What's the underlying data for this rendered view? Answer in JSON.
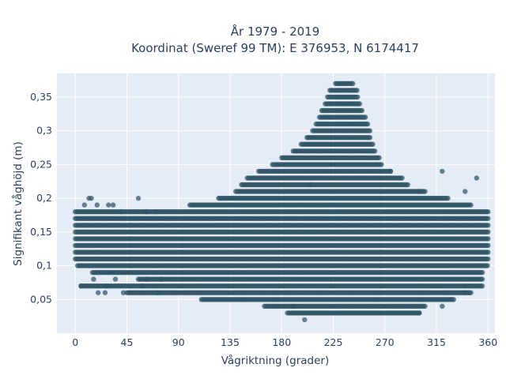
{
  "chart_data": {
    "type": "scatter",
    "title": "År 1979 - 2019",
    "subtitle": "Koordinat (Sweref 99 TM): E 376953, N 6174417",
    "xlabel": "Vågriktning (grader)",
    "ylabel": "Signifikant våghöjd (m)",
    "xlim": [
      -16,
      366
    ],
    "ylim": [
      0,
      0.385
    ],
    "x_ticks": [
      0,
      45,
      90,
      135,
      180,
      225,
      270,
      315,
      360
    ],
    "x_tick_labels": [
      "0",
      "45",
      "90",
      "135",
      "180",
      "225",
      "270",
      "315",
      "360"
    ],
    "y_ticks": [
      0.05,
      0.1,
      0.15,
      0.2,
      0.25,
      0.3,
      0.35
    ],
    "y_tick_labels": [
      "0,05",
      "0,1",
      "0,15",
      "0,2",
      "0,25",
      "0,3",
      "0,35"
    ],
    "grid": true,
    "marker_color": "#2f5466",
    "bands": [
      {
        "y": 0.02,
        "x": [
          [
            200,
            200
          ]
        ]
      },
      {
        "y": 0.03,
        "x": [
          [
            185,
            300
          ]
        ]
      },
      {
        "y": 0.04,
        "x": [
          [
            165,
            305
          ]
        ]
      },
      {
        "y": 0.05,
        "x": [
          [
            110,
            330
          ]
        ]
      },
      {
        "y": 0.06,
        "x": [
          [
            45,
            345
          ]
        ]
      },
      {
        "y": 0.07,
        "x": [
          [
            5,
            355
          ]
        ]
      },
      {
        "y": 0.08,
        "x": [
          [
            55,
            355
          ]
        ]
      },
      {
        "y": 0.09,
        "x": [
          [
            15,
            355
          ]
        ]
      },
      {
        "y": 0.1,
        "x": [
          [
            2,
            360
          ]
        ]
      },
      {
        "y": 0.11,
        "x": [
          [
            0,
            360
          ]
        ]
      },
      {
        "y": 0.12,
        "x": [
          [
            0,
            360
          ]
        ]
      },
      {
        "y": 0.13,
        "x": [
          [
            0,
            360
          ]
        ]
      },
      {
        "y": 0.14,
        "x": [
          [
            0,
            360
          ]
        ]
      },
      {
        "y": 0.15,
        "x": [
          [
            0,
            360
          ]
        ]
      },
      {
        "y": 0.16,
        "x": [
          [
            0,
            360
          ]
        ]
      },
      {
        "y": 0.17,
        "x": [
          [
            0,
            360
          ]
        ]
      },
      {
        "y": 0.18,
        "x": [
          [
            0,
            360
          ]
        ]
      },
      {
        "y": 0.19,
        "x": [
          [
            100,
            345
          ]
        ]
      },
      {
        "y": 0.2,
        "x": [
          [
            125,
            325
          ]
        ]
      },
      {
        "y": 0.21,
        "x": [
          [
            140,
            305
          ]
        ]
      },
      {
        "y": 0.22,
        "x": [
          [
            145,
            290
          ]
        ]
      },
      {
        "y": 0.23,
        "x": [
          [
            150,
            285
          ]
        ]
      },
      {
        "y": 0.24,
        "x": [
          [
            160,
            275
          ]
        ]
      },
      {
        "y": 0.25,
        "x": [
          [
            172,
            268
          ]
        ]
      },
      {
        "y": 0.26,
        "x": [
          [
            180,
            265
          ]
        ]
      },
      {
        "y": 0.27,
        "x": [
          [
            190,
            262
          ]
        ]
      },
      {
        "y": 0.28,
        "x": [
          [
            197,
            260
          ]
        ]
      },
      {
        "y": 0.29,
        "x": [
          [
            202,
            258
          ]
        ]
      },
      {
        "y": 0.3,
        "x": [
          [
            207,
            257
          ]
        ]
      },
      {
        "y": 0.31,
        "x": [
          [
            210,
            255
          ]
        ]
      },
      {
        "y": 0.32,
        "x": [
          [
            213,
            253
          ]
        ]
      },
      {
        "y": 0.33,
        "x": [
          [
            215,
            250
          ]
        ]
      },
      {
        "y": 0.34,
        "x": [
          [
            218,
            248
          ]
        ]
      },
      {
        "y": 0.35,
        "x": [
          [
            220,
            247
          ]
        ]
      },
      {
        "y": 0.36,
        "x": [
          [
            222,
            246
          ]
        ]
      },
      {
        "y": 0.37,
        "x": [
          [
            227,
            242
          ]
        ]
      }
    ],
    "outliers": [
      [
        12,
        0.2
      ],
      [
        14,
        0.2
      ],
      [
        8,
        0.19
      ],
      [
        19,
        0.19
      ],
      [
        29,
        0.19
      ],
      [
        33,
        0.19
      ],
      [
        55,
        0.2
      ],
      [
        40,
        0.18
      ],
      [
        62,
        0.18
      ],
      [
        70,
        0.18
      ],
      [
        5,
        0.07
      ],
      [
        16,
        0.08
      ],
      [
        20,
        0.06
      ],
      [
        26,
        0.06
      ],
      [
        28,
        0.07
      ],
      [
        35,
        0.08
      ],
      [
        42,
        0.06
      ],
      [
        58,
        0.07
      ],
      [
        62,
        0.08
      ],
      [
        72,
        0.06
      ],
      [
        75,
        0.08
      ],
      [
        205,
        0.22
      ],
      [
        275,
        0.24
      ],
      [
        300,
        0.21
      ],
      [
        320,
        0.24
      ],
      [
        340,
        0.21
      ],
      [
        350,
        0.23
      ],
      [
        190,
        0.04
      ],
      [
        300,
        0.03
      ],
      [
        320,
        0.04
      ],
      [
        340,
        0.06
      ]
    ]
  }
}
